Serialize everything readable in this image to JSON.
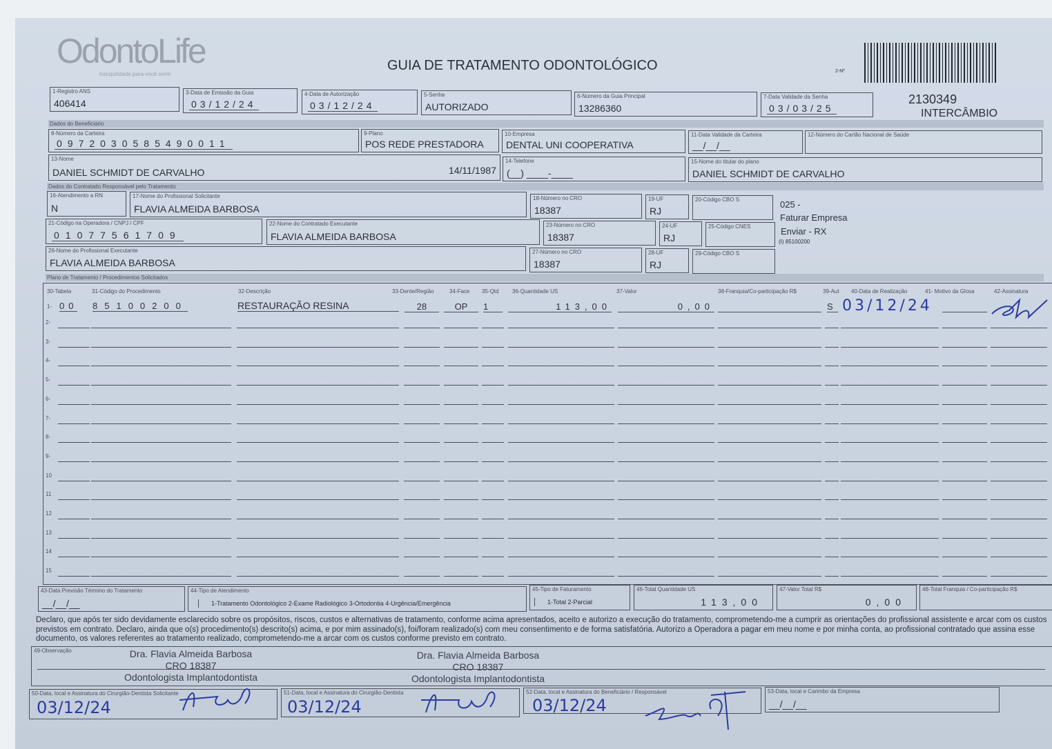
{
  "logo": {
    "brand": "OdontoLife",
    "tagline": "tranquilidade para você sorrir"
  },
  "title": "GUIA DE TRATAMENTO ODONTOLÓGICO",
  "guide_number_label": "2-Nº",
  "header_right": {
    "number": "2130349",
    "type": "INTERCÂMBIO"
  },
  "fields": {
    "f1": {
      "label": "1-Registro ANS",
      "value": "406414"
    },
    "f3": {
      "label": "3-Data de Emissão da Guia",
      "value": "03/12/24"
    },
    "f4": {
      "label": "4-Data de Autorização",
      "value": "03/12/24"
    },
    "f5": {
      "label": "5-Senha",
      "value": "AUTORIZADO"
    },
    "f6": {
      "label": "6-Número da Guia Principal",
      "value": "13286360"
    },
    "f7": {
      "label": "7-Data Validade da Senha",
      "value": "03/03/25"
    },
    "f8": {
      "label": "8-Número da Carteira",
      "value": "0972030585490011"
    },
    "f9": {
      "label": "9-Plano",
      "value": "POS REDE PRESTADORA"
    },
    "f10": {
      "label": "10-Empresa",
      "value": "DENTAL UNI  COOPERATIVA"
    },
    "f11": {
      "label": "11-Data Validade da Carteira",
      "value": "__/__/__"
    },
    "f12": {
      "label": "12-Número do Cartão Nacional de Saúde",
      "value": ""
    },
    "f13": {
      "label": "13-Nome",
      "value": "DANIEL SCHMIDT DE CARVALHO",
      "birth": "14/11/1987"
    },
    "f14": {
      "label": "14-Telefone",
      "value": "(__) ____-____"
    },
    "f15": {
      "label": "15-Nome do titular do plano",
      "value": "DANIEL SCHMIDT DE CARVALHO"
    },
    "f16": {
      "label": "16-Atendimento a RN",
      "value": "N"
    },
    "f17": {
      "label": "17-Nome do Profissional Solicitante",
      "value": "FLAVIA ALMEIDA BARBOSA"
    },
    "f18": {
      "label": "18-Número no CRO",
      "value": "18387"
    },
    "f19": {
      "label": "19-UF",
      "value": "RJ"
    },
    "f20": {
      "label": "20-Código CBO S",
      "value": ""
    },
    "f21": {
      "label": "21-Código na Operadora / CNPJ / CPF",
      "value": "01077561709"
    },
    "f22": {
      "label": "22-Nome do Contratado Executante",
      "value": "FLAVIA ALMEIDA BARBOSA"
    },
    "f23": {
      "label": "23-Número no CRO",
      "value": "18387"
    },
    "f24": {
      "label": "24-UF",
      "value": "RJ"
    },
    "f25": {
      "label": "25-Código CNES",
      "value": ""
    },
    "f26": {
      "label": "26-Nome do Profissional Executante",
      "value": "FLAVIA ALMEIDA BARBOSA"
    },
    "f27": {
      "label": "27-Número no CRO",
      "value": "18387"
    },
    "f28": {
      "label": "28-UF",
      "value": "RJ"
    },
    "f29": {
      "label": "29-Código CBO S",
      "value": ""
    }
  },
  "side_notes": {
    "line1": "025 -",
    "line2": "Faturar Empresa",
    "line3": "Enviar - RX",
    "line4": "(I) 85100200"
  },
  "sections": {
    "beneficiary": "Dados do Beneficiário",
    "contractor": "Dados do Contratado Responsável pelo Tratamento",
    "plan": "Plano de Tratamento / Procedimentos Solicitados"
  },
  "table": {
    "headers": {
      "tabela": "30-Tabela",
      "codigo": "31-Código do Procedimento",
      "descricao": "32-Descrição",
      "dente": "33-Dente/Região",
      "face": "34-Face",
      "qtd": "35-Qtd",
      "qtd_us": "36-Quantidade US",
      "valor": "37-Valor",
      "franquia": "38-Franquia/Co-participação R$",
      "aut": "39-Aut",
      "data": "40-Data de Realização",
      "glosa": "41- Motivo da Glosa",
      "assinatura": "42-Assinatura"
    },
    "row1": {
      "num": "1-",
      "tabela": "00",
      "codigo": "85100200",
      "descricao": "RESTAURAÇÃO RESINA",
      "dente": "28",
      "face": "OP",
      "qtd": "1",
      "qtd_us": "113,00",
      "valor": "0,00",
      "franquia": "",
      "aut": "S",
      "data": "03/12/24",
      "glosa": ""
    },
    "empty_rows": [
      "2-",
      "3-",
      "4-",
      "5-",
      "6-",
      "7-",
      "8-",
      "9-",
      "10",
      "11",
      "12",
      "13",
      "14",
      "15"
    ]
  },
  "footer": {
    "f43": {
      "label": "43-Data Previsão Término do Tratamento",
      "value": "__/__/__"
    },
    "f44": {
      "label": "44-Tipo de Atendimento",
      "options": "1-Tratamento Odontológico  2-Exame Radiológico  3-Ortodontia  4-Urgência/Emergência"
    },
    "f45": {
      "label": "45-Tipo de Faturamento",
      "options": "1-Total  2-Parcial"
    },
    "f46": {
      "label": "46-Total Quantidade US",
      "value": "113,00"
    },
    "f47": {
      "label": "47-Valor Total R$",
      "value": "0,00"
    },
    "f48": {
      "label": "48-Total Franquia / Co-participação R$",
      "value": ""
    },
    "declaration": "Declaro, que após ter sido devidamente esclarecido sobre os propósitos, riscos, custos e alternativas de tratamento, conforme acima apresentados, aceito e autorizo a execução do tratamento, comprometendo-me a cumprir as orientações do profissional assistente e arcar com os custos previstos em contrato. Declaro, ainda que o(s) procedimento(s) descrito(s) acima, e por mim assinado(s), foi/foram realizado(s) com meu consentimento e de forma satisfatória. Autorizo a Operadora a pagar em meu nome e por minha conta, ao profissional contratado que assina esse documento, os valores referentes ao tratamento realizado, comprometendo-me a arcar com os custos conforme previsto em contrato.",
    "f49": {
      "label": "49-Observação"
    },
    "stamp": {
      "name": "Dra. Flavia Almeida Barbosa",
      "cro": "CRO 18387",
      "specialty": "Odontologista Implantodontista"
    },
    "f50": {
      "label": "50-Data, local e Assinatura do Cirurgião-Dentista Solicitante",
      "value": "03/12/24"
    },
    "f51": {
      "label": "51-Data, local e Assinatura do Cirurgião-Dentista",
      "value": "03/12/24"
    },
    "f52": {
      "label": "52-Data, local e Assinatura do Beneficiário / Responsável",
      "value": "03/12/24"
    },
    "f53": {
      "label": "53-Data, local e Carimbo da Empresa",
      "value": "__/__/__"
    }
  },
  "colors": {
    "paper": "#c9d3df",
    "ink": "#2c3038",
    "pen": "#2c3aa0"
  }
}
